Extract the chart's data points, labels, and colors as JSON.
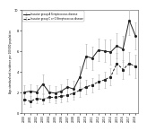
{
  "years": [
    2000,
    2001,
    2002,
    2003,
    2004,
    2005,
    2006,
    2007,
    2008,
    2009,
    2010,
    2011,
    2012,
    2013,
    2014,
    2015,
    2016,
    2017,
    2018
  ],
  "gA_values": [
    2.0,
    2.1,
    2.0,
    2.8,
    2.0,
    1.9,
    2.1,
    2.5,
    2.3,
    3.5,
    5.5,
    5.3,
    6.1,
    6.0,
    5.9,
    6.5,
    6.2,
    9.0,
    7.5
  ],
  "gA_ci_low": [
    1.3,
    1.4,
    1.3,
    1.9,
    1.3,
    1.2,
    1.4,
    1.7,
    1.5,
    2.5,
    4.3,
    4.2,
    5.0,
    4.9,
    4.7,
    5.3,
    4.9,
    7.6,
    6.2
  ],
  "gA_ci_high": [
    2.7,
    2.8,
    2.7,
    3.7,
    2.7,
    2.6,
    2.8,
    3.3,
    3.1,
    4.5,
    6.7,
    6.4,
    7.2,
    7.1,
    7.1,
    7.7,
    7.5,
    10.4,
    8.8
  ],
  "gCG_values": [
    1.3,
    1.1,
    1.4,
    1.3,
    1.5,
    1.5,
    1.6,
    1.7,
    1.9,
    2.2,
    2.5,
    2.7,
    3.0,
    3.2,
    3.5,
    4.8,
    4.2,
    4.8,
    4.5
  ],
  "gCG_ci_low": [
    0.8,
    0.6,
    0.9,
    0.8,
    1.0,
    0.9,
    1.0,
    1.1,
    1.3,
    1.5,
    1.8,
    2.0,
    2.3,
    2.4,
    2.7,
    3.8,
    3.3,
    3.7,
    3.4
  ],
  "gCG_ci_high": [
    1.8,
    1.6,
    1.9,
    1.8,
    2.0,
    2.1,
    2.2,
    2.3,
    2.5,
    2.9,
    3.2,
    3.4,
    3.7,
    4.0,
    4.3,
    5.8,
    5.1,
    5.9,
    5.6
  ],
  "ylim": [
    0,
    10.0
  ],
  "yticks": [
    0,
    2.0,
    4.0,
    6.0,
    8.0,
    10.0
  ],
  "ylabel": "Age-standardised incidence per 100,000 population",
  "legend_gA": "Invasive group A Streptococcus disease",
  "legend_gCG": "Invasive group C or G Streptococcus disease",
  "line_color": "#222222",
  "ci_color": "#bbbbbb",
  "bg_color": "#ffffff"
}
